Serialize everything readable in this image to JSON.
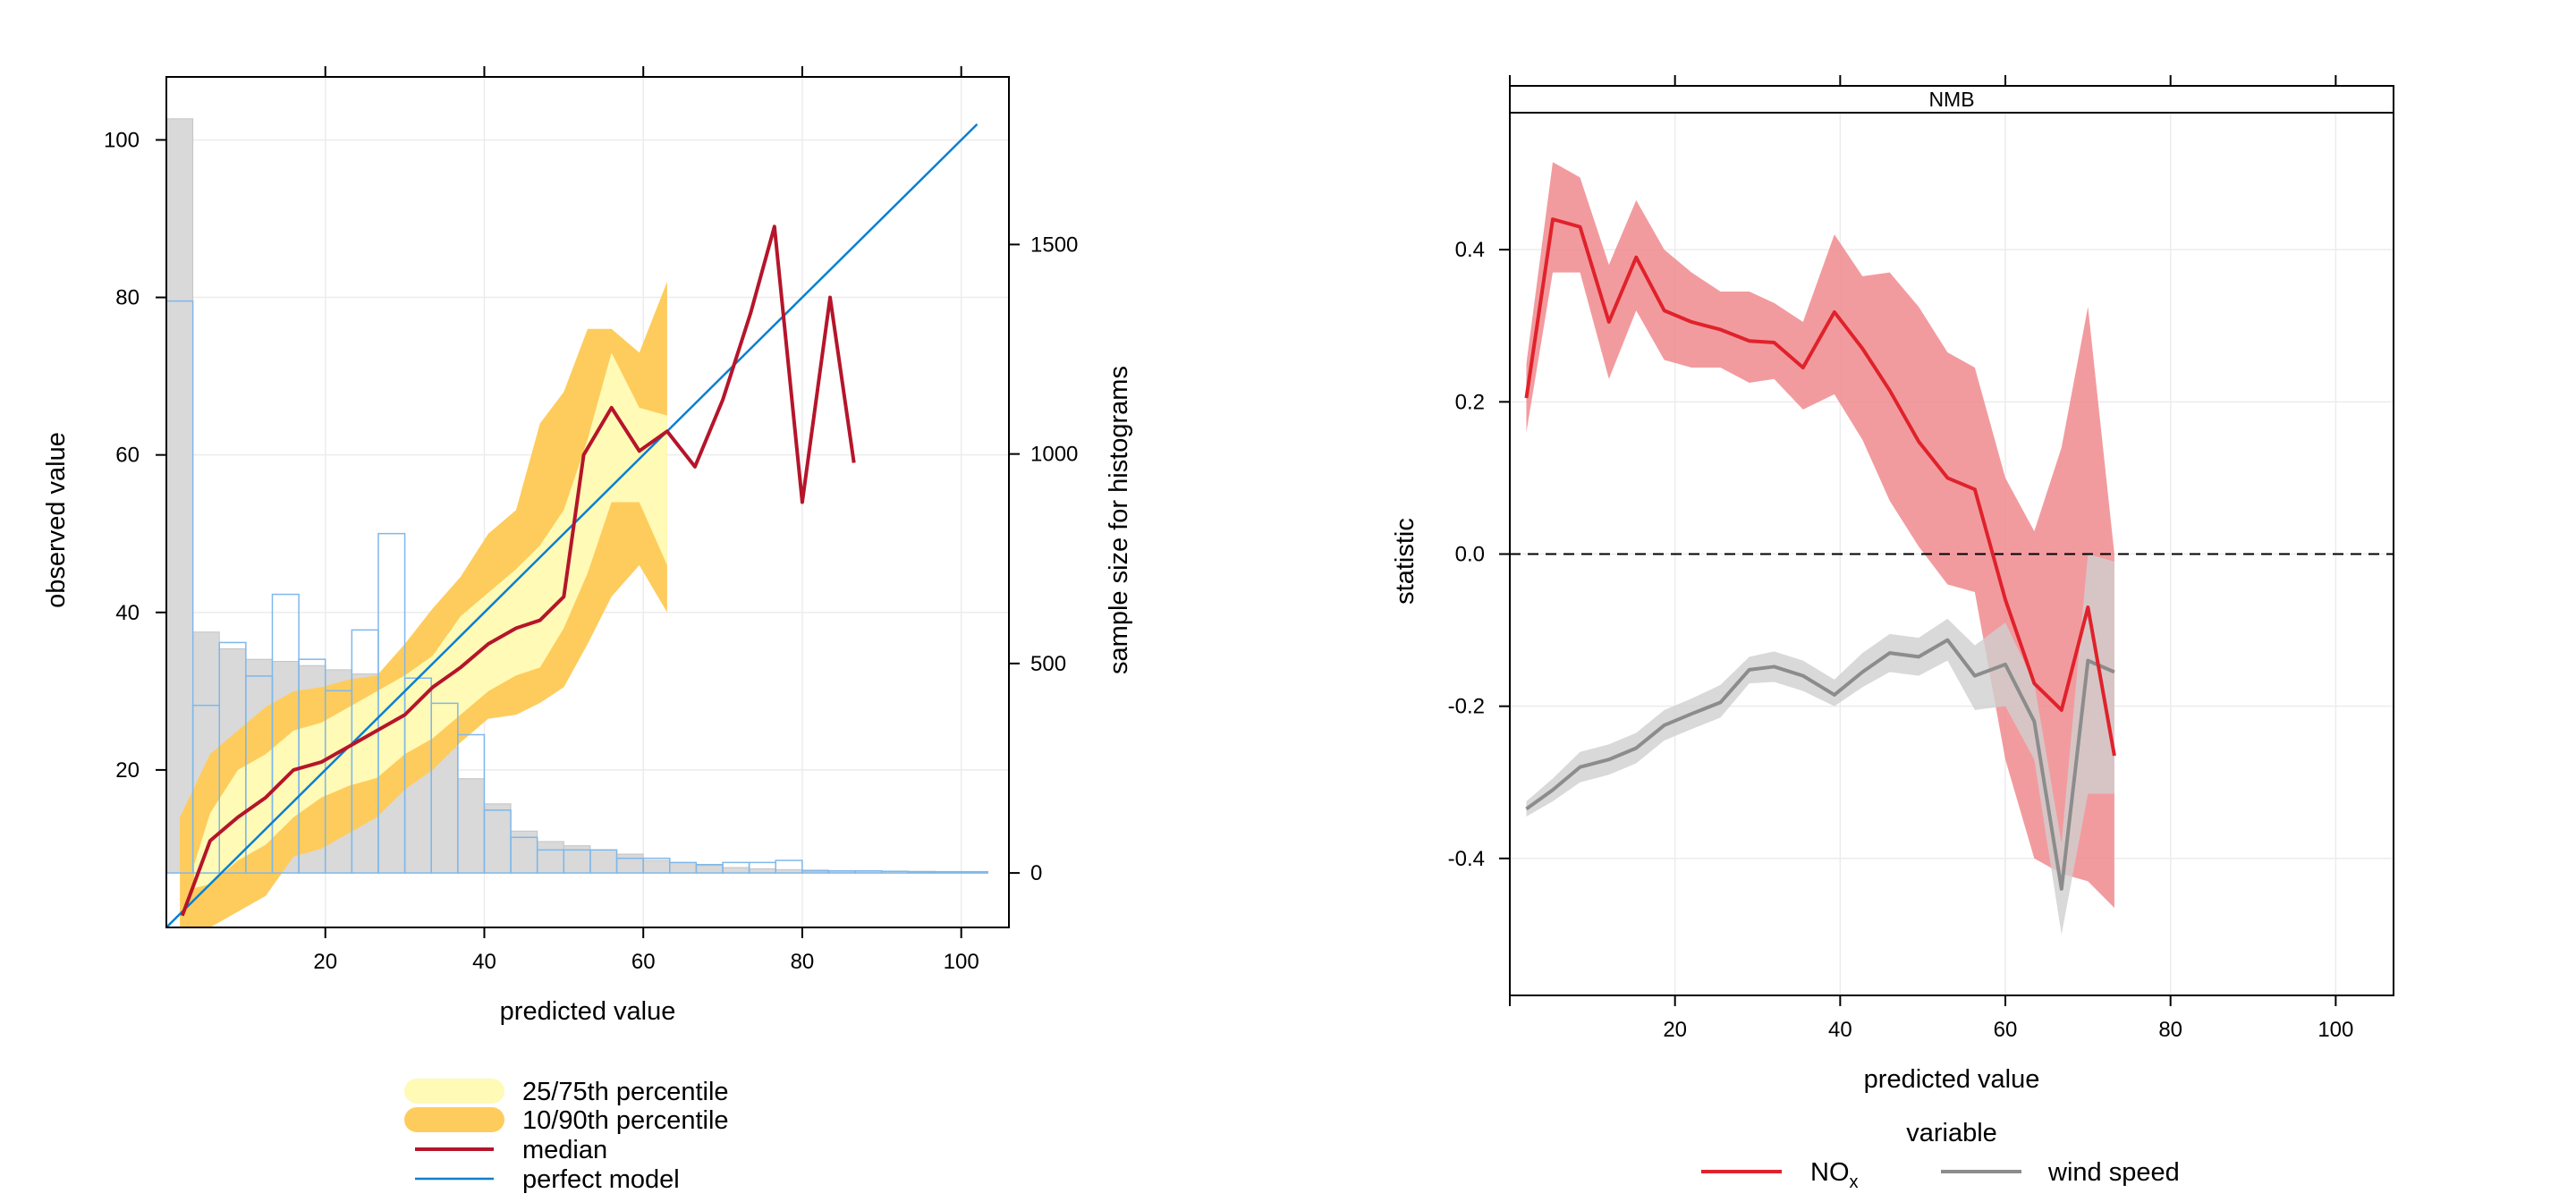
{
  "chart_data": [
    {
      "type": "line",
      "title": "",
      "xlabel": "predicted value",
      "ylabel": "observed value",
      "y2label": "sample size for histograms",
      "xlim": [
        0,
        106
      ],
      "ylim": [
        0,
        108
      ],
      "y2lim": [
        -130,
        1900
      ],
      "xticks": [
        20,
        40,
        60,
        80,
        100
      ],
      "yticks": [
        20,
        40,
        60,
        80,
        100
      ],
      "y2ticks": [
        0,
        500,
        1000,
        1500
      ],
      "grid": true,
      "legend_position": "bottom",
      "legend": [
        {
          "label": "25/75th percentile",
          "color": "#fffab6",
          "kind": "band"
        },
        {
          "label": "10/90th percentile",
          "color": "#fecc5c",
          "kind": "band"
        },
        {
          "label": "median",
          "color": "#b5152a",
          "kind": "line"
        },
        {
          "label": "perfect model",
          "color": "#0b7fd1",
          "kind": "line"
        }
      ],
      "perfect_model": [
        [
          0,
          0
        ],
        [
          102,
          102
        ]
      ],
      "median": {
        "x": [
          2,
          5.5,
          9,
          12.5,
          16,
          19.5,
          23,
          26.5,
          30,
          33.5,
          37,
          40.5,
          44,
          47,
          50,
          52.5,
          56,
          59.5,
          63,
          66.5,
          70,
          73.5,
          76.5,
          80,
          83.5,
          86.5
        ],
        "y": [
          1.5,
          11,
          14,
          16.5,
          20,
          21,
          23,
          25,
          27,
          30.5,
          33,
          36,
          38,
          39,
          42,
          60,
          66,
          60.5,
          63,
          58.5,
          67,
          78,
          89,
          54,
          80,
          59
        ]
      },
      "band_10_90": {
        "x": [
          1.7,
          5.5,
          9,
          12.5,
          16,
          19.5,
          23,
          26.5,
          30,
          33.5,
          37,
          40.5,
          44,
          47,
          50,
          53,
          56,
          59.5,
          63
        ],
        "lower": [
          0,
          0,
          2,
          4,
          9,
          10,
          12,
          14,
          17.5,
          20,
          23.5,
          26.5,
          27,
          28.5,
          30.5,
          36,
          42,
          46,
          40
        ],
        "upper": [
          14,
          22,
          25,
          28,
          30,
          30.5,
          31.5,
          32,
          36,
          40.5,
          44.5,
          50,
          53,
          64,
          68,
          76,
          76,
          73,
          82
        ]
      },
      "band_25_75": {
        "x": [
          3.5,
          5.5,
          9,
          12.5,
          16,
          19.5,
          23,
          26.5,
          30,
          33.5,
          37,
          40.5,
          44,
          47,
          50,
          53,
          56,
          59.5,
          63
        ],
        "lower": [
          5,
          5.5,
          8.5,
          10.5,
          14,
          16.5,
          18,
          19,
          22,
          24,
          27,
          30,
          32,
          33,
          38,
          45,
          54,
          54,
          46
        ],
        "upper": [
          8,
          14.5,
          20,
          22,
          25,
          26,
          28,
          30,
          32,
          34.5,
          39.5,
          42.5,
          45.5,
          48.5,
          53,
          62,
          73,
          66,
          65
        ]
      },
      "histogram_observed": {
        "bin_width": 3.333,
        "start": 0,
        "counts": [
          1800,
          575,
          535,
          510,
          505,
          495,
          485,
          475,
          440,
          415,
          300,
          225,
          165,
          100,
          75,
          65,
          55,
          45,
          30,
          25,
          18,
          13,
          10,
          8,
          7,
          5,
          5,
          4,
          4,
          3,
          3
        ]
      },
      "histogram_predicted": {
        "bin_width": 3.333,
        "start": 0,
        "counts": [
          1365,
          400,
          550,
          470,
          665,
          510,
          435,
          580,
          810,
          465,
          405,
          330,
          150,
          85,
          55,
          55,
          55,
          35,
          35,
          25,
          20,
          25,
          25,
          30,
          5,
          5,
          5,
          4,
          3,
          3,
          3
        ]
      }
    },
    {
      "type": "line",
      "title": "",
      "strip_label": "NMB",
      "xlabel": "predicted value",
      "ylabel": "statistic",
      "xlim": [
        0,
        107
      ],
      "ylim": [
        -0.58,
        0.58
      ],
      "xticks": [
        20,
        40,
        60,
        80,
        100
      ],
      "yticks": [
        -0.4,
        -0.2,
        0.0,
        0.2,
        0.4
      ],
      "ytick_labels": [
        "-0.4",
        "-0.2",
        "0.0",
        "0.2",
        "0.4"
      ],
      "grid": true,
      "reference_line": 0,
      "legend_position": "bottom",
      "legend_title": "variable",
      "series": [
        {
          "name": "NO",
          "name_sub": "x",
          "color": "#e0222b",
          "band_color": "#f08a8e",
          "x": [
            2,
            5.2,
            8.5,
            12,
            15.3,
            18.7,
            22,
            25.5,
            29,
            32,
            35.5,
            39.3,
            42.7,
            46,
            49.5,
            53,
            56.3,
            60,
            63.5,
            66.8,
            70,
            73.2
          ],
          "y": [
            0.205,
            0.44,
            0.43,
            0.305,
            0.39,
            0.32,
            0.305,
            0.295,
            0.28,
            0.278,
            0.245,
            0.318,
            0.27,
            0.215,
            0.148,
            0.1,
            0.085,
            -0.06,
            -0.17,
            -0.205,
            -0.07,
            -0.265
          ],
          "lower": [
            0.16,
            0.37,
            0.37,
            0.23,
            0.32,
            0.255,
            0.245,
            0.245,
            0.225,
            0.23,
            0.19,
            0.21,
            0.15,
            0.07,
            0.01,
            -0.04,
            -0.05,
            -0.27,
            -0.4,
            -0.42,
            -0.43,
            -0.465
          ],
          "upper": [
            0.25,
            0.515,
            0.495,
            0.38,
            0.465,
            0.4,
            0.37,
            0.345,
            0.345,
            0.33,
            0.305,
            0.42,
            0.365,
            0.37,
            0.325,
            0.265,
            0.245,
            0.1,
            0.03,
            0.14,
            0.325,
            0.0
          ]
        },
        {
          "name": "wind speed",
          "name_sub": "",
          "color": "#8c8c8c",
          "band_color": "#cfcfcf",
          "x": [
            2,
            5.2,
            8.5,
            12,
            15.3,
            18.7,
            22,
            25.5,
            29,
            32,
            35.5,
            39.3,
            42.7,
            46,
            49.5,
            53,
            56.3,
            60,
            63.5,
            66.8,
            70,
            73.2
          ],
          "y": [
            -0.335,
            -0.31,
            -0.28,
            -0.27,
            -0.255,
            -0.225,
            -0.21,
            -0.195,
            -0.152,
            -0.148,
            -0.16,
            -0.185,
            -0.155,
            -0.13,
            -0.135,
            -0.113,
            -0.16,
            -0.145,
            -0.22,
            -0.44,
            -0.14,
            -0.155
          ],
          "lower": [
            -0.345,
            -0.325,
            -0.3,
            -0.29,
            -0.275,
            -0.245,
            -0.23,
            -0.215,
            -0.17,
            -0.168,
            -0.18,
            -0.2,
            -0.175,
            -0.155,
            -0.16,
            -0.14,
            -0.205,
            -0.2,
            -0.27,
            -0.5,
            -0.315,
            -0.315
          ],
          "upper": [
            -0.325,
            -0.295,
            -0.26,
            -0.25,
            -0.235,
            -0.205,
            -0.19,
            -0.172,
            -0.135,
            -0.128,
            -0.14,
            -0.165,
            -0.13,
            -0.105,
            -0.11,
            -0.085,
            -0.12,
            -0.09,
            -0.17,
            -0.38,
            0.0,
            -0.01
          ]
        }
      ]
    }
  ]
}
